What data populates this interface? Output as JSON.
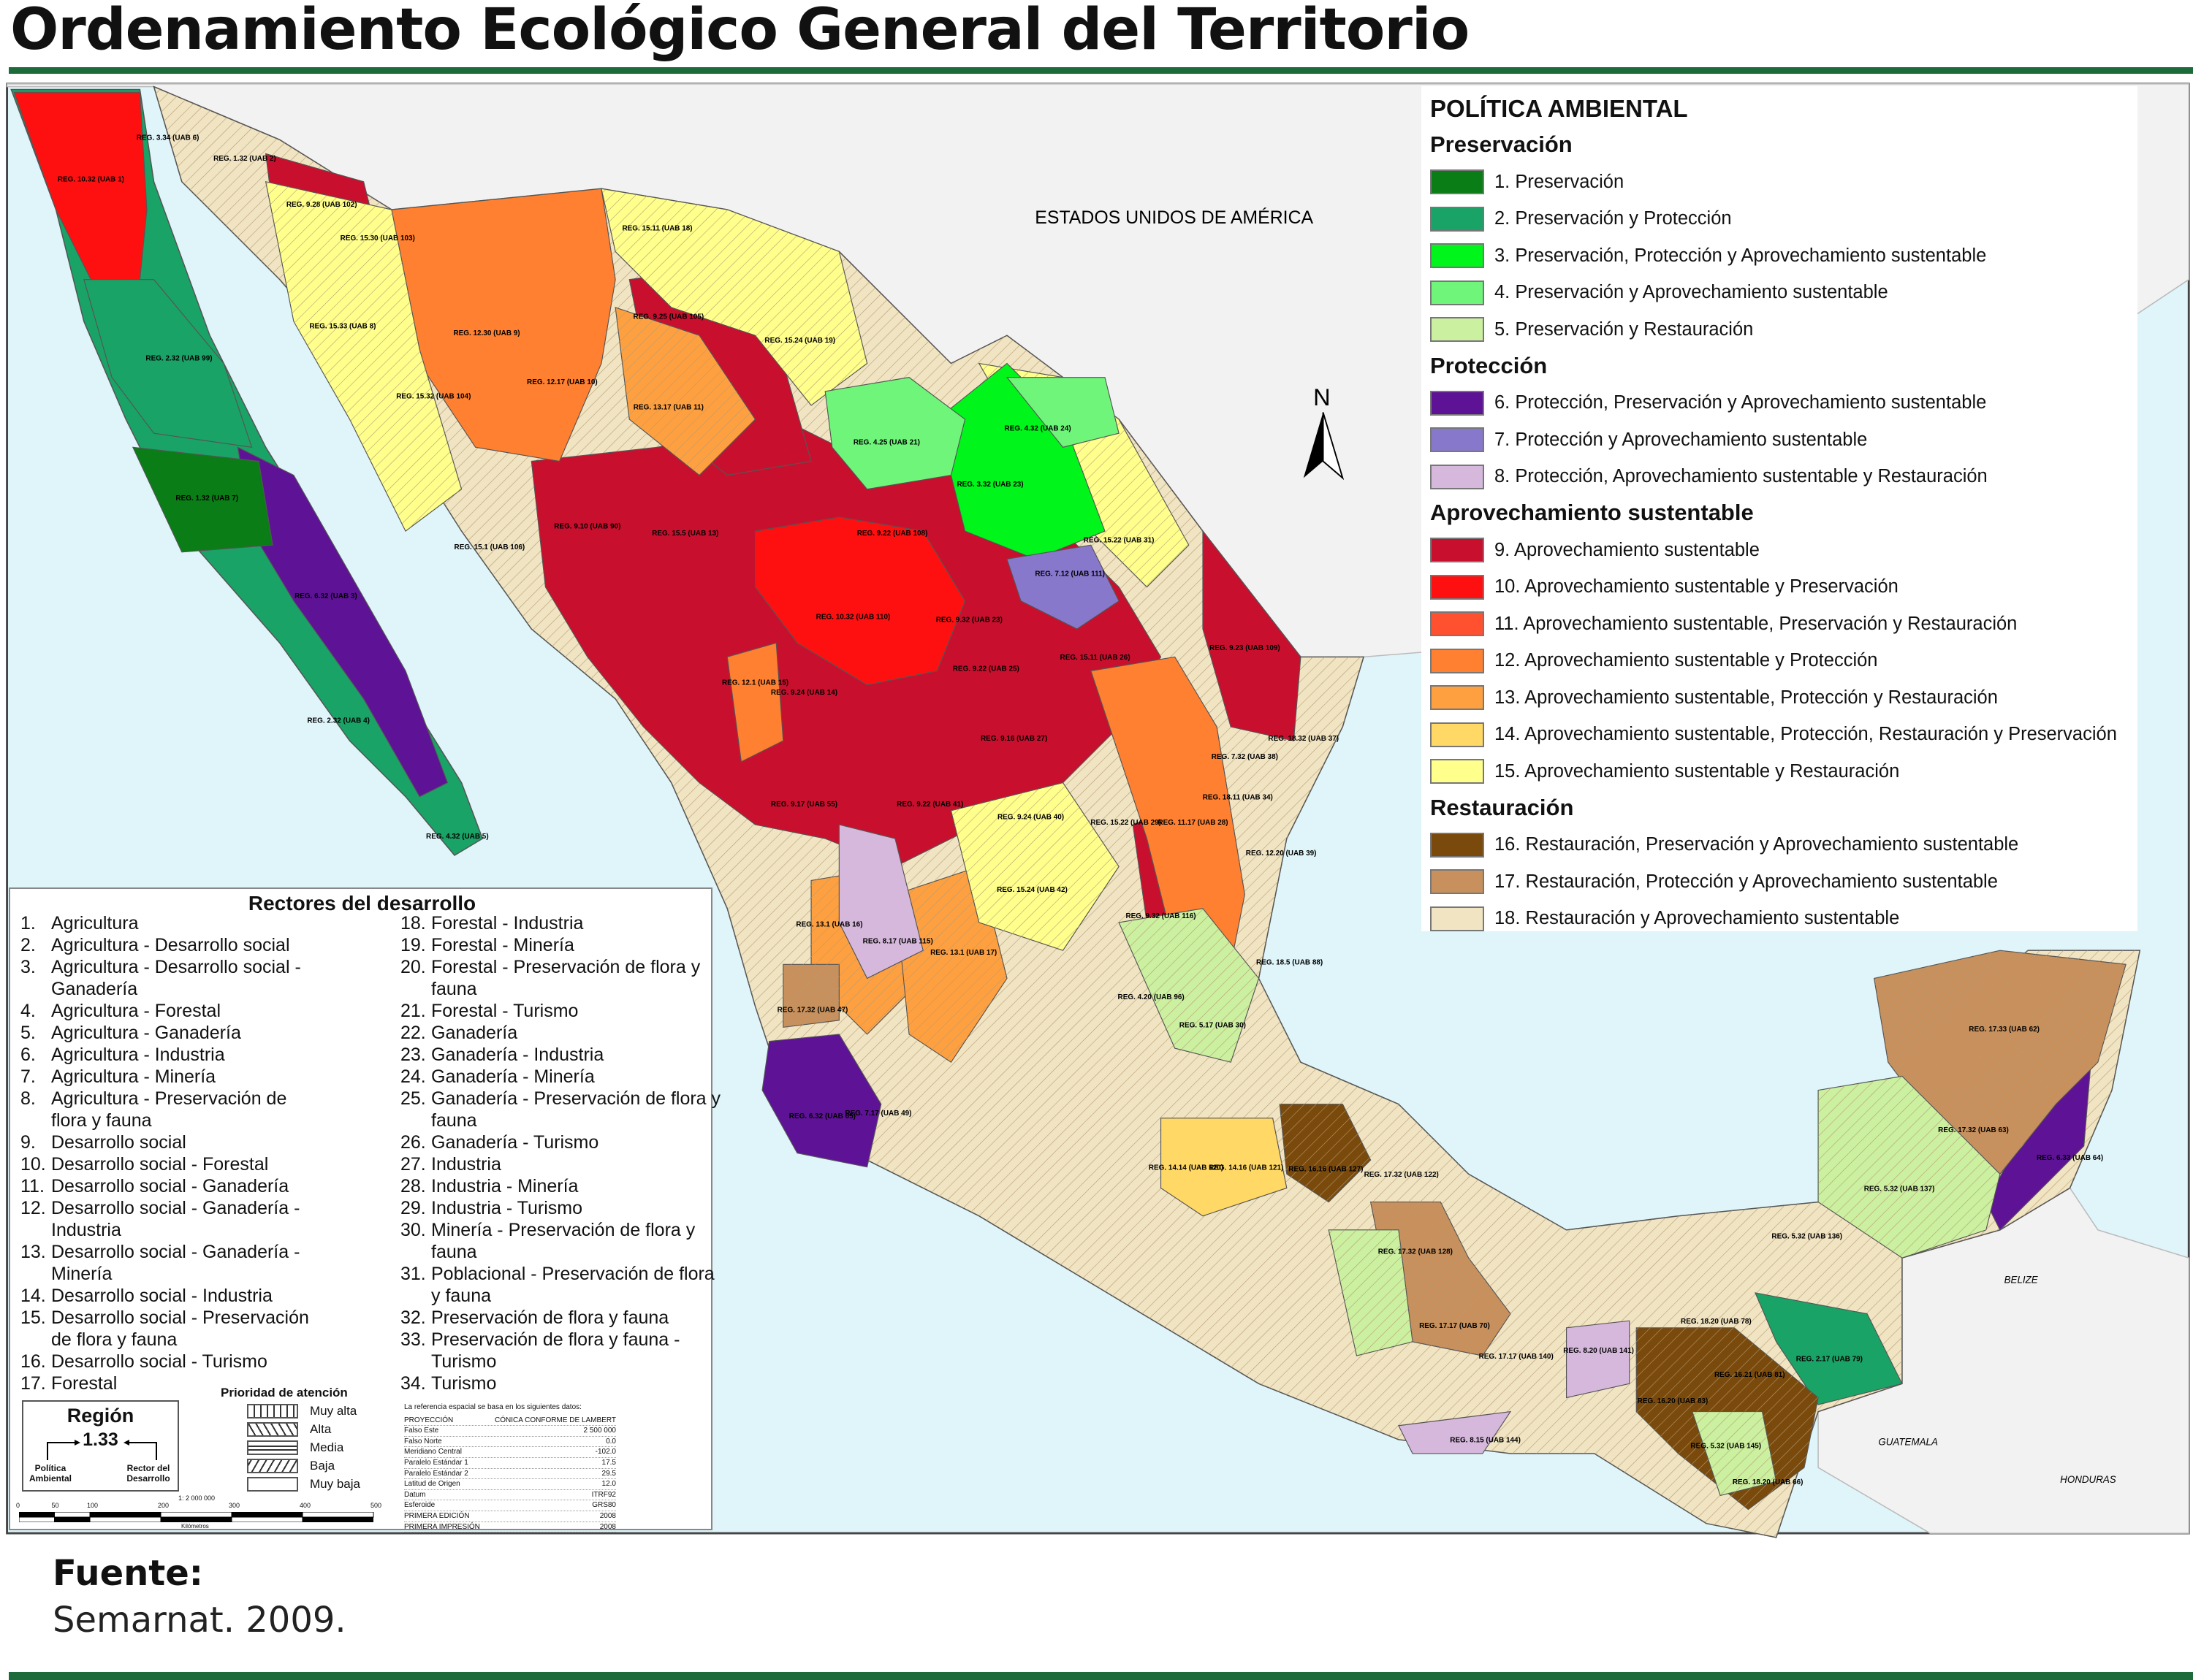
{
  "title": "Ordenamiento Ecológico General del Territorio",
  "map": {
    "country_labels": {
      "usa": "ESTADOS UNIDOS  DE AMÉRICA",
      "belize": "BELIZE",
      "guatemala": "GUATEMALA",
      "honduras": "HONDURAS"
    },
    "north_arrow": "N",
    "sea_color": "#dff5fa",
    "region_labels": [
      "REG. 3.34 (UAB 6)",
      "REG. 10.32 (UAB 1)",
      "REG. 1.32 (UAB 2)",
      "REG. 9.28 (UAB 102)",
      "REG. 15.30 (UAB 103)",
      "REG. 15.33 (UAB 8)",
      "REG. 2.32 (UAB 99)",
      "REG. 12.30 (UAB 9)",
      "REG. 15.32 (UAB 104)",
      "REG. 12.17 (UAB 10)",
      "REG. 15.11 (UAB 18)",
      "REG. 9.25 (UAB 105)",
      "REG. 13.17 (UAB 11)",
      "REG. 15.24 (UAB 19)",
      "REG. 4.25 (UAB 21)",
      "REG. 4.32 (UAB 24)",
      "REG. 3.32 (UAB 23)",
      "REG. 1.32 (UAB 7)",
      "REG. 6.32 (UAB 3)",
      "REG. 2.32 (UAB 4)",
      "REG. 4.32 (UAB 5)",
      "REG. 15.1 (UAB 106)",
      "REG. 9.10 (UAB 90)",
      "REG. 15.5 (UAB 13)",
      "REG. 9.22 (UAB 108)",
      "REG. 15.22 (UAB 31)",
      "REG. 7.12 (UAB 111)",
      "REG. 9.32 (UAB 23)",
      "REG. 10.32 (UAB 110)",
      "REG. 12.1 (UAB 15)",
      "REG. 9.24 (UAB 14)",
      "REG. 9.22 (UAB 25)",
      "REG. 15.11 (UAB 26)",
      "REG. 9.23 (UAB 109)",
      "REG. 9.16 (UAB 27)",
      "REG. 18.32 (UAB 37)",
      "REG. 7.32 (UAB 38)",
      "REG. 18.11 (UAB 34)",
      "REG. 9.17 (UAB 55)",
      "REG. 9.22 (UAB 41)",
      "REG. 9.24 (UAB 40)",
      "REG. 15.22 (UAB 29)",
      "REG. 11.17 (UAB 28)",
      "REG. 12.20 (UAB 39)",
      "REG. 15.24 (UAB 42)",
      "REG. 9.32 (UAB 116)",
      "REG. 18.5 (UAB 88)",
      "REG. 4.20 (UAB 96)",
      "REG. 5.17 (UAB 30)",
      "REG. 17.32 (UAB 47)",
      "REG. 8.17 (UAB 115)",
      "REG. 13.1 (UAB 16)",
      "REG. 13.1 (UAB 17)",
      "REG. 6.32 (UAB 65)",
      "REG. 7.17 (UAB 49)",
      "REG. 17.33 (UAB 62)",
      "REG. 17.32 (UAB 63)",
      "REG. 6.33 (UAB 64)",
      "REG. 5.32 (UAB 137)",
      "REG. 5.32 (UAB 136)",
      "REG. 16.16 (UAB 127)",
      "REG. 17.32 (UAB 122)",
      "REG. 14.14 (UAB 120)",
      "REG. 14.16 (UAB 121)",
      "REG. 17.32 (UAB 128)",
      "REG. 17.17 (UAB 70)",
      "REG. 17.17 (UAB 140)",
      "REG. 8.20 (UAB 141)",
      "REG. 16.20 (UAB 83)",
      "REG. 16.21 (UAB 81)",
      "REG. 2.17 (UAB 79)",
      "REG. 18.20 (UAB 78)",
      "REG. 5.32 (UAB 145)",
      "REG. 18.20 (UAB 66)",
      "REG. 8.15 (UAB 144)"
    ]
  },
  "legend": {
    "title": "POLÍTICA AMBIENTAL",
    "groups": [
      {
        "name": "Preservación",
        "items": [
          {
            "label": "1.  Preservación",
            "color": "#0a7d16"
          },
          {
            "label": "2.  Preservación y Protección",
            "color": "#1aa366"
          },
          {
            "label": "3.  Preservación, Protección y Aprovechamiento sustentable",
            "color": "#00f51a"
          },
          {
            "label": "4.  Preservación y Aprovechamiento sustentable",
            "color": "#6ff57a"
          },
          {
            "label": "5.  Preservación y Restauración",
            "color": "#cbf0a0"
          }
        ]
      },
      {
        "name": "Protección",
        "items": [
          {
            "label": "6.  Protección, Preservación y Aprovechamiento sustentable",
            "color": "#5e1296"
          },
          {
            "label": "7.  Protección y Aprovechamiento sustentable",
            "color": "#8878cc"
          },
          {
            "label": "8.  Protección, Aprovechamiento sustentable y Restauración",
            "color": "#d6b8dc"
          }
        ]
      },
      {
        "name": "Aprovechamiento sustentable",
        "items": [
          {
            "label": "9.  Aprovechamiento sustentable",
            "color": "#c8102e"
          },
          {
            "label": "10. Aprovechamiento sustentable y Preservación",
            "color": "#ff1010"
          },
          {
            "label": "11. Aprovechamiento sustentable, Preservación y Restauración",
            "color": "#ff5030"
          },
          {
            "label": "12. Aprovechamiento sustentable y Protección",
            "color": "#ff8030"
          },
          {
            "label": "13. Aprovechamiento sustentable, Protección y Restauración",
            "color": "#ffa040"
          },
          {
            "label": "14. Aprovechamiento sustentable, Protección, Restauración y Preservación",
            "color": "#ffd866"
          },
          {
            "label": "15. Aprovechamiento sustentable y Restauración",
            "color": "#ffff8c"
          }
        ]
      },
      {
        "name": "Restauración",
        "items": [
          {
            "label": "16. Restauración, Preservación y Aprovechamiento sustentable",
            "color": "#7a4a0c"
          },
          {
            "label": "17. Restauración, Protección y Aprovechamiento sustentable",
            "color": "#c8905c"
          },
          {
            "label": "18. Restauración y Aprovechamiento sustentable",
            "color": "#f0e4c2"
          }
        ]
      }
    ]
  },
  "rectores": {
    "title": "Rectores del desarrollo",
    "items": [
      "Agricultura",
      "Agricultura - Desarrollo social",
      "Agricultura - Desarrollo social - Ganadería",
      "Agricultura - Forestal",
      "Agricultura - Ganadería",
      "Agricultura - Industria",
      "Agricultura - Minería",
      "Agricultura - Preservación de flora y fauna",
      "Desarrollo social",
      "Desarrollo social - Forestal",
      "Desarrollo social - Ganadería",
      "Desarrollo social - Ganadería - Industria",
      "Desarrollo social - Ganadería - Minería",
      "Desarrollo social - Industria",
      "Desarrollo social - Preservación de flora y fauna",
      "Desarrollo social - Turismo",
      "Forestal",
      "Forestal - Industria",
      "Forestal - Minería",
      "Forestal - Preservación de flora y fauna",
      "Forestal - Turismo",
      "Ganadería",
      "Ganadería - Industria",
      "Ganadería - Minería",
      "Ganadería - Preservación de flora y fauna",
      "Ganadería - Turismo",
      "Industria",
      "Industria - Minería",
      "Industria - Turismo",
      "Minería - Preservación de flora y fauna",
      "Poblacional - Preservación de flora y fauna",
      "Preservación de flora y fauna",
      "Preservación de flora y fauna - Turismo",
      "Turismo"
    ]
  },
  "region_key": {
    "title": "Región",
    "example": "1.33",
    "left": "Política Ambiental",
    "right": "Rector del Desarrollo"
  },
  "priority": {
    "title": "Prioridad de atención",
    "levels": [
      "Muy alta",
      "Alta",
      "Media",
      "Baja",
      "Muy baja"
    ]
  },
  "scale": {
    "ratio": "1: 2 000 000",
    "ticks": [
      "0",
      "50",
      "100",
      "200",
      "300",
      "400",
      "500"
    ],
    "unit": "Kilómetros"
  },
  "projection": {
    "intro": "La referencia espacial se basa en los siguientes datos:",
    "rows": [
      [
        "PROYECCIÓN",
        "CÓNICA CONFORME DE LAMBERT"
      ],
      [
        "Falso Este",
        "2 500 000"
      ],
      [
        "Falso Norte",
        "0.0"
      ],
      [
        "Meridiano Central",
        "-102.0"
      ],
      [
        "Paralelo Estándar 1",
        "17.5"
      ],
      [
        "Paralelo Estándar 2",
        "29.5"
      ],
      [
        "Latitud de Origen",
        "12.0"
      ],
      [
        "Datum",
        "ITRF92"
      ],
      [
        "Esferoide",
        "GRS80"
      ],
      [
        "PRIMERA EDICIÓN",
        "2008"
      ],
      [
        "PRIMERA IMPRESIÓN",
        "2008"
      ]
    ]
  },
  "footer": {
    "source_label": "Fuente:",
    "source": "Semarnat. 2009."
  }
}
